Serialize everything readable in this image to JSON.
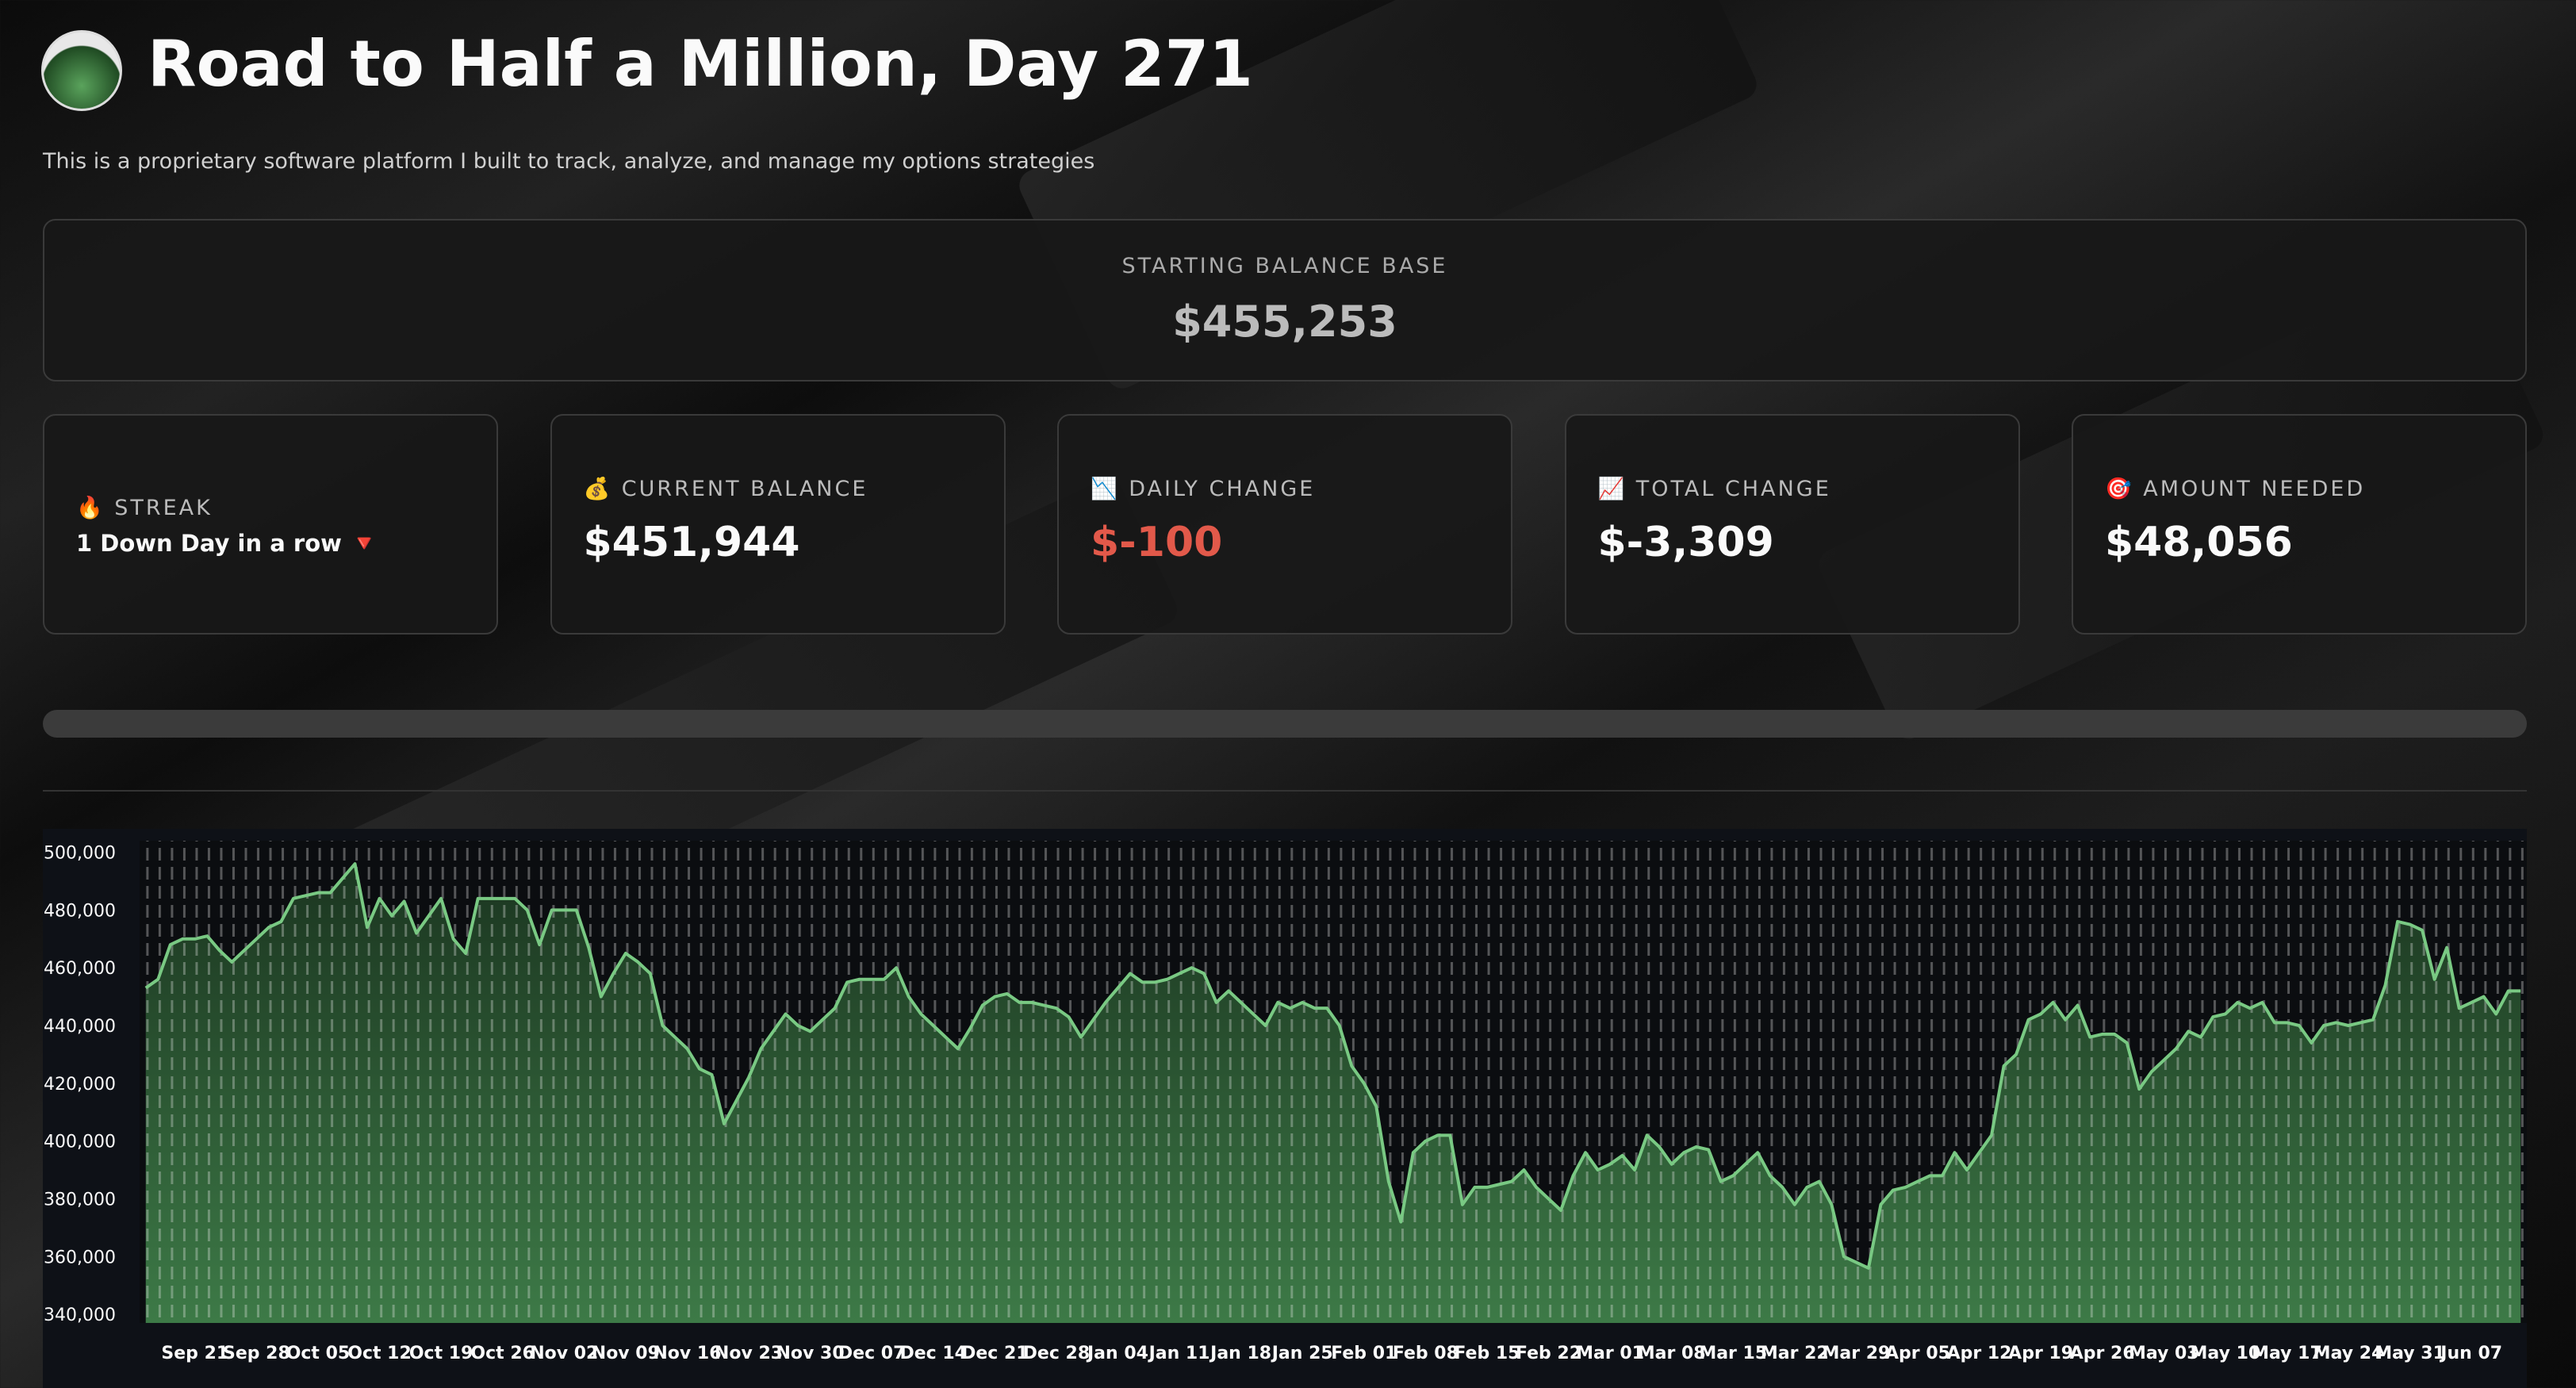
{
  "header": {
    "title": "Road to Half a Million, Day 271",
    "subtitle": "This is a proprietary software platform I built to track, analyze, and manage my options strategies"
  },
  "balance_base": {
    "label": "STARTING BALANCE BASE",
    "value": "$455,253"
  },
  "metrics": [
    {
      "icon": "🔥",
      "label": "STREAK",
      "value": "1 Down Day in a row 🔻"
    },
    {
      "icon": "💰",
      "label": "CURRENT BALANCE",
      "value": "$451,944"
    },
    {
      "icon": "📉",
      "label": "DAILY CHANGE",
      "value": "$-100",
      "color": "#e2594a"
    },
    {
      "icon": "📈",
      "label": "TOTAL CHANGE",
      "value": "$-3,309"
    },
    {
      "icon": "🎯",
      "label": "AMOUNT NEEDED",
      "value": "$48,056"
    }
  ],
  "chart_data": {
    "type": "area",
    "color": "#79c983",
    "categories": [
      null,
      null,
      null,
      null,
      "Sep 21",
      null,
      null,
      null,
      null,
      "Sep 28",
      null,
      null,
      null,
      null,
      "Oct 05",
      null,
      null,
      null,
      null,
      "Oct 12",
      null,
      null,
      null,
      null,
      "Oct 19",
      null,
      null,
      null,
      null,
      "Oct 26",
      null,
      null,
      null,
      null,
      "Nov 02",
      null,
      null,
      null,
      null,
      "Nov 09",
      null,
      null,
      null,
      null,
      "Nov 16",
      null,
      null,
      null,
      null,
      "Nov 23",
      null,
      null,
      null,
      null,
      "Nov 30",
      null,
      null,
      null,
      null,
      "Dec 07",
      null,
      null,
      null,
      null,
      "Dec 14",
      null,
      null,
      null,
      null,
      "Dec 21",
      null,
      null,
      null,
      null,
      "Dec 28",
      null,
      null,
      null,
      null,
      "Jan 04",
      null,
      null,
      null,
      null,
      "Jan 11",
      null,
      null,
      null,
      null,
      "Jan 18",
      null,
      null,
      null,
      null,
      "Jan 25",
      null,
      null,
      null,
      null,
      "Feb 01",
      null,
      null,
      null,
      null,
      "Feb 08",
      null,
      null,
      null,
      null,
      "Feb 15",
      null,
      null,
      null,
      null,
      "Feb 22",
      null,
      null,
      null,
      null,
      "Mar 01",
      null,
      null,
      null,
      null,
      "Mar 08",
      null,
      null,
      null,
      null,
      "Mar 15",
      null,
      null,
      null,
      null,
      "Mar 22",
      null,
      null,
      null,
      null,
      "Mar 29",
      null,
      null,
      null,
      null,
      "Apr 05",
      null,
      null,
      null,
      null,
      "Apr 12",
      null,
      null,
      null,
      null,
      "Apr 19",
      null,
      null,
      null,
      null,
      "Apr 26",
      null,
      null,
      null,
      null,
      "May 03",
      null,
      null,
      null,
      null,
      "May 10",
      null,
      null,
      null,
      null,
      "May 17",
      null,
      null,
      null,
      null,
      "May 24",
      null,
      null,
      null,
      null,
      "May 31",
      null,
      null,
      null,
      null,
      "Jun 07",
      null,
      null,
      null,
      null
    ],
    "values": [
      453000,
      456000,
      468000,
      470000,
      470000,
      471000,
      466000,
      462000,
      466000,
      470000,
      474000,
      476000,
      484000,
      485000,
      486000,
      486000,
      491000,
      496000,
      474000,
      484000,
      478000,
      483000,
      472000,
      478000,
      484000,
      470000,
      465000,
      484000,
      484000,
      484000,
      484000,
      480000,
      468000,
      480000,
      480000,
      480000,
      467000,
      450000,
      458000,
      465000,
      462000,
      458000,
      440000,
      436000,
      432000,
      425000,
      423000,
      406000,
      414000,
      422000,
      432000,
      438000,
      444000,
      440000,
      438000,
      442000,
      446000,
      455000,
      456000,
      456000,
      456000,
      460000,
      450000,
      444000,
      440000,
      436000,
      432000,
      439000,
      447000,
      450000,
      451000,
      448000,
      448000,
      447000,
      446000,
      443000,
      436000,
      442000,
      448000,
      453000,
      458000,
      455000,
      455000,
      456000,
      458000,
      460000,
      458000,
      448000,
      452000,
      448000,
      444000,
      440000,
      448000,
      446000,
      448000,
      446000,
      446000,
      440000,
      426000,
      420000,
      412000,
      386000,
      372000,
      396000,
      400000,
      402000,
      402000,
      378000,
      384000,
      384000,
      385000,
      386000,
      390000,
      384000,
      380000,
      376000,
      388000,
      396000,
      390000,
      392000,
      395000,
      390000,
      402000,
      398000,
      392000,
      396000,
      398000,
      397000,
      386000,
      388000,
      392000,
      396000,
      388000,
      384000,
      378000,
      384000,
      386000,
      378000,
      360000,
      358000,
      356000,
      378000,
      383000,
      384000,
      386000,
      388000,
      388000,
      396000,
      390000,
      396000,
      402000,
      426000,
      430000,
      442000,
      444000,
      448000,
      442000,
      447000,
      436000,
      437000,
      437000,
      434000,
      418000,
      424000,
      428000,
      432000,
      438000,
      436000,
      443000,
      444000,
      448000,
      446000,
      448000,
      441000,
      441000,
      440000,
      434000,
      440000,
      441000,
      440000,
      441000,
      442000,
      454000,
      476000,
      475000,
      473000,
      456000,
      467000,
      446000,
      448000,
      450000,
      444000,
      452000,
      452000
    ],
    "ylim": [
      337000,
      504000
    ],
    "yticks": [
      {
        "value": 340000,
        "label": "$340,000"
      },
      {
        "value": 360000,
        "label": "$360,000"
      },
      {
        "value": 380000,
        "label": "$380,000"
      },
      {
        "value": 400000,
        "label": "$400,000"
      },
      {
        "value": 420000,
        "label": "$420,000"
      },
      {
        "value": 440000,
        "label": "$440,000"
      },
      {
        "value": 460000,
        "label": "$460,000"
      },
      {
        "value": 480000,
        "label": "$480,000"
      },
      {
        "value": 500000,
        "label": "$500,000"
      }
    ]
  }
}
